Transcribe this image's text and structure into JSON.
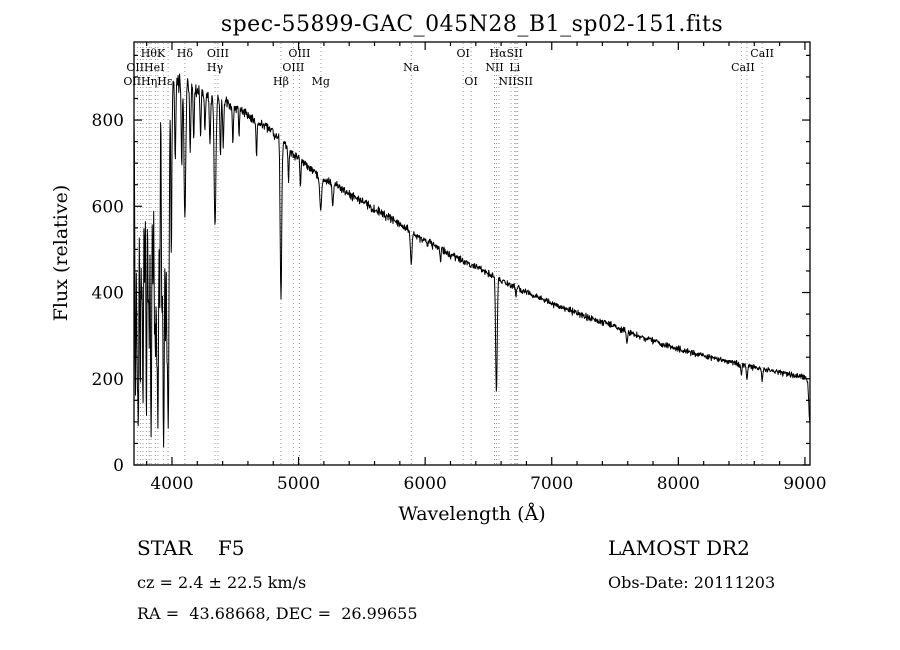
{
  "title": "spec-55899-GAC_045N28_B1_sp02-151.fits",
  "annotations": {
    "class_label": "STAR    F5",
    "survey": "LAMOST DR2",
    "cz": "cz = 2.4 ± 22.5 km/s",
    "obs_date": "Obs-Date: 20111203",
    "radec": "RA =  43.68668, DEC =  26.99655"
  },
  "chart_data": {
    "type": "line",
    "title": "spec-55899-GAC_045N28_B1_sp02-151.fits",
    "xlabel": "Wavelength (Å)",
    "ylabel": "Flux (relative)",
    "xlim": [
      3700,
      9040
    ],
    "ylim": [
      0,
      981
    ],
    "xticks": [
      4000,
      5000,
      6000,
      7000,
      8000,
      9000
    ],
    "yticks": [
      0,
      200,
      400,
      600,
      800
    ],
    "grid": false,
    "legend": "none",
    "series_name": "spectrum",
    "line_color": "#000000",
    "marker_color": "#999999",
    "continuum_points": [
      [
        3700,
        845
      ],
      [
        3760,
        870
      ],
      [
        3820,
        885
      ],
      [
        3900,
        900
      ],
      [
        3980,
        893
      ],
      [
        4050,
        886
      ],
      [
        4150,
        876
      ],
      [
        4250,
        862
      ],
      [
        4350,
        850
      ],
      [
        4450,
        838
      ],
      [
        4550,
        820
      ],
      [
        4650,
        798
      ],
      [
        4750,
        785
      ],
      [
        4850,
        755
      ],
      [
        4950,
        722
      ],
      [
        5050,
        700
      ],
      [
        5150,
        672
      ],
      [
        5250,
        655
      ],
      [
        5350,
        638
      ],
      [
        5450,
        620
      ],
      [
        5550,
        602
      ],
      [
        5650,
        585
      ],
      [
        5750,
        568
      ],
      [
        5850,
        548
      ],
      [
        5950,
        528
      ],
      [
        6050,
        512
      ],
      [
        6150,
        496
      ],
      [
        6250,
        480
      ],
      [
        6350,
        466
      ],
      [
        6450,
        452
      ],
      [
        6550,
        436
      ],
      [
        6650,
        420
      ],
      [
        6750,
        407
      ],
      [
        6850,
        394
      ],
      [
        6950,
        381
      ],
      [
        7050,
        368
      ],
      [
        7150,
        357
      ],
      [
        7250,
        346
      ],
      [
        7350,
        336
      ],
      [
        7450,
        326
      ],
      [
        7550,
        315
      ],
      [
        7650,
        303
      ],
      [
        7750,
        293
      ],
      [
        7850,
        283
      ],
      [
        7950,
        273
      ],
      [
        8050,
        265
      ],
      [
        8150,
        257
      ],
      [
        8250,
        250
      ],
      [
        8350,
        243
      ],
      [
        8450,
        236
      ],
      [
        8550,
        229
      ],
      [
        8650,
        223
      ],
      [
        8750,
        217
      ],
      [
        8850,
        211
      ],
      [
        8950,
        206
      ],
      [
        9010,
        203
      ],
      [
        9022,
        190
      ],
      [
        9032,
        130
      ],
      [
        9040,
        90
      ]
    ],
    "absorption_lines": [
      [
        3712,
        150,
        5
      ],
      [
        3722,
        420,
        4
      ],
      [
        3727,
        240,
        4
      ],
      [
        3734,
        80,
        5
      ],
      [
        3750,
        160,
        5
      ],
      [
        3760,
        410,
        4
      ],
      [
        3771,
        130,
        5
      ],
      [
        3784,
        430,
        4
      ],
      [
        3798,
        100,
        5
      ],
      [
        3812,
        370,
        4
      ],
      [
        3820,
        280,
        4
      ],
      [
        3835,
        65,
        6
      ],
      [
        3850,
        420,
        4
      ],
      [
        3862,
        330,
        4
      ],
      [
        3870,
        235,
        5
      ],
      [
        3880,
        300,
        4
      ],
      [
        3889,
        85,
        6
      ],
      [
        3903,
        350,
        4
      ],
      [
        3920,
        390,
        4
      ],
      [
        3934,
        42,
        7
      ],
      [
        3950,
        270,
        4
      ],
      [
        3960,
        340,
        4
      ],
      [
        3970,
        85,
        7
      ],
      [
        3995,
        480,
        4
      ],
      [
        4026,
        705,
        4
      ],
      [
        4077,
        690,
        4
      ],
      [
        4102,
        575,
        7
      ],
      [
        4144,
        725,
        4
      ],
      [
        4172,
        755,
        4
      ],
      [
        4226,
        760,
        4
      ],
      [
        4260,
        775,
        4
      ],
      [
        4300,
        745,
        5
      ],
      [
        4340,
        555,
        7
      ],
      [
        4383,
        715,
        4
      ],
      [
        4405,
        735,
        4
      ],
      [
        4481,
        745,
        4
      ],
      [
        4530,
        760,
        3
      ],
      [
        4668,
        715,
        4
      ],
      [
        4861,
        385,
        6
      ],
      [
        4921,
        655,
        4
      ],
      [
        5015,
        645,
        4
      ],
      [
        5175,
        590,
        7
      ],
      [
        5270,
        600,
        5
      ],
      [
        5890,
        465,
        6
      ],
      [
        6122,
        470,
        4
      ],
      [
        6563,
        168,
        6
      ],
      [
        6717,
        388,
        3
      ],
      [
        7594,
        282,
        5
      ],
      [
        8498,
        208,
        4
      ],
      [
        8542,
        198,
        5
      ],
      [
        8662,
        193,
        4
      ]
    ],
    "noise_profile": [
      [
        3700,
        48
      ],
      [
        3980,
        48
      ],
      [
        4050,
        26
      ],
      [
        4300,
        17
      ],
      [
        4700,
        14
      ],
      [
        5500,
        12
      ],
      [
        6500,
        10
      ],
      [
        7500,
        9
      ],
      [
        9040,
        7
      ]
    ],
    "marker_lines": [
      3727,
      3751,
      3771,
      3798,
      3820,
      3835,
      3869,
      3889,
      3934,
      3970,
      4102,
      4340,
      4363,
      4861,
      4959,
      5007,
      5177,
      5890,
      6300,
      6363,
      6548,
      6563,
      6583,
      6678,
      6708,
      6717,
      6731,
      8498,
      8542,
      8662
    ],
    "line_labels": [
      {
        "text": "HθK",
        "x": 3850,
        "row": 0
      },
      {
        "text": "Hδ",
        "x": 4102,
        "row": 0
      },
      {
        "text": "OIII",
        "x": 4363,
        "row": 0
      },
      {
        "text": "OIII",
        "x": 5007,
        "row": 0
      },
      {
        "text": "OI",
        "x": 6300,
        "row": 0
      },
      {
        "text": "HαSII",
        "x": 6640,
        "row": 0
      },
      {
        "text": "CaII",
        "x": 8662,
        "row": 0
      },
      {
        "text": "OIIHeI",
        "x": 3790,
        "row": 1
      },
      {
        "text": "Hγ",
        "x": 4340,
        "row": 1
      },
      {
        "text": "OIII",
        "x": 4959,
        "row": 1
      },
      {
        "text": "Na",
        "x": 5890,
        "row": 1
      },
      {
        "text": "NII",
        "x": 6548,
        "row": 1
      },
      {
        "text": "Li",
        "x": 6708,
        "row": 1
      },
      {
        "text": "CaII",
        "x": 8510,
        "row": 1
      },
      {
        "text": "OIIHηHε",
        "x": 3810,
        "row": 2
      },
      {
        "text": "Hβ",
        "x": 4861,
        "row": 2
      },
      {
        "text": "Mg",
        "x": 5175,
        "row": 2
      },
      {
        "text": "OI",
        "x": 6363,
        "row": 2
      },
      {
        "text": "NIISII",
        "x": 6715,
        "row": 2
      }
    ]
  }
}
